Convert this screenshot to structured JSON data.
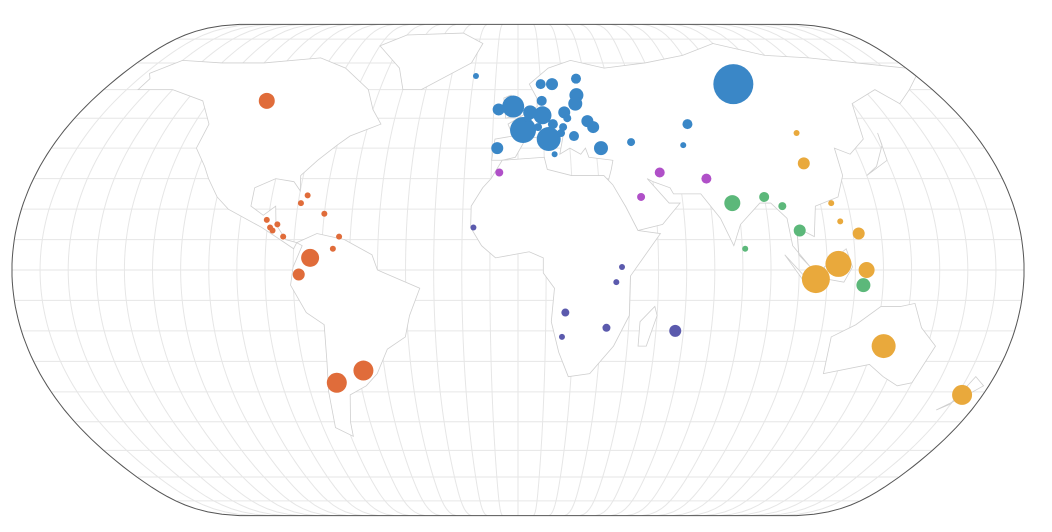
{
  "chart_data": {
    "type": "bubble",
    "grid": true,
    "xlim": [
      -180,
      180
    ],
    "ylim": [
      -90,
      90
    ],
    "series": [
      {
        "color": "#e06c3a",
        "x": [
          -106,
          -90.5,
          -89,
          -88,
          -86.5,
          -84,
          -79,
          -77,
          -70,
          -64,
          -66,
          -74,
          -78,
          -69,
          -58
        ],
        "y": [
          56,
          16.5,
          14,
          13,
          15,
          11,
          22,
          24.5,
          18.5,
          11,
          7,
          4,
          -1.5,
          -37,
          -33
        ],
        "sizes": [
          64,
          9,
          9,
          9,
          9,
          9,
          9,
          9,
          9,
          9,
          9,
          81,
          36,
          100,
          100
        ]
      },
      {
        "color": "#e9a93c",
        "x": [
          134,
          172,
          106,
          114,
          124,
          122,
          108,
          110,
          114,
          116
        ],
        "y": [
          -25,
          -41,
          -3,
          2,
          0,
          12,
          35,
          45,
          22,
          16
        ],
        "sizes": [
          144,
          100,
          196,
          169,
          64,
          36,
          36,
          9,
          9,
          9
        ]
      },
      {
        "color": "#3a87c7",
        "x": [
          95,
          -19,
          -8,
          -2,
          10,
          15,
          26,
          25,
          10,
          5,
          10,
          19,
          24,
          14,
          20,
          18,
          28,
          2,
          12,
          4,
          17,
          30,
          -8,
          22,
          32,
          8,
          14,
          68,
          44,
          64
        ],
        "y": [
          62,
          65,
          53,
          54,
          62,
          62,
          64,
          58,
          56,
          52,
          51,
          52,
          55,
          48,
          50,
          47,
          49,
          46,
          43,
          50,
          45,
          47,
          40,
          44,
          40,
          47,
          38,
          48,
          42,
          41
        ],
        "sizes": [
          400,
          9,
          36,
          121,
          25,
          36,
          25,
          49,
          25,
          49,
          81,
          36,
          49,
          25,
          16,
          16,
          36,
          169,
          144,
          16,
          16,
          36,
          36,
          25,
          49,
          16,
          9,
          25,
          16,
          9
        ]
      },
      {
        "color": "#b050c8",
        "x": [
          -7,
          53,
          70,
          45
        ],
        "y": [
          32,
          32,
          30,
          24
        ],
        "sizes": [
          16,
          25,
          25,
          16
        ]
      },
      {
        "color": "#5b5aad",
        "x": [
          -16,
          37,
          35,
          17,
          32,
          16,
          57
        ],
        "y": [
          14,
          1,
          -4,
          -14,
          -19,
          -22,
          -20
        ],
        "sizes": [
          9,
          9,
          9,
          16,
          16,
          9,
          36
        ]
      },
      {
        "color": "#5cb87a",
        "x": [
          78,
          90,
          96,
          101,
          81,
          123
        ],
        "y": [
          22,
          24,
          21,
          13,
          7,
          -5
        ],
        "sizes": [
          64,
          25,
          16,
          36,
          9,
          49
        ]
      }
    ]
  }
}
